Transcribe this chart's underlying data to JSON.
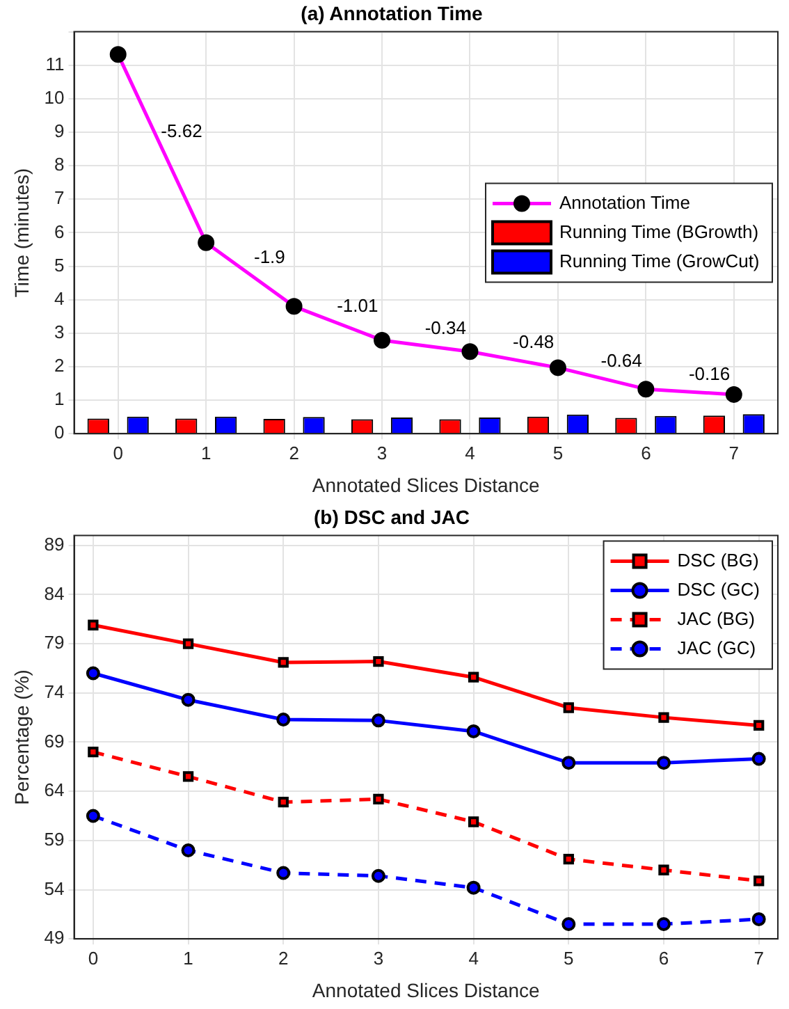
{
  "chart_data": [
    {
      "type": "bar",
      "title": "(a) Annotation Time",
      "xlabel": "Annotated Slices Distance",
      "ylabel": "Time (minutes)",
      "categories": [
        "0",
        "1",
        "2",
        "3",
        "4",
        "5",
        "6",
        "7"
      ],
      "series": [
        {
          "name": "Annotation Time",
          "type": "line",
          "color": "#ff00ff",
          "marker": "circle",
          "values": [
            11.32,
            5.7,
            3.8,
            2.79,
            2.45,
            1.97,
            1.33,
            1.17
          ]
        },
        {
          "name": "Running Time (BGrowth)",
          "type": "bar",
          "color": "#ff0000",
          "values": [
            0.45,
            0.45,
            0.44,
            0.43,
            0.43,
            0.51,
            0.47,
            0.54
          ]
        },
        {
          "name": "Running Time (GrowCut)",
          "type": "bar",
          "color": "#0000ff",
          "values": [
            0.51,
            0.51,
            0.5,
            0.48,
            0.48,
            0.57,
            0.53,
            0.58
          ]
        }
      ],
      "annotations": [
        "-5.62",
        "-1.9",
        "-1.01",
        "-0.34",
        "-0.48",
        "-0.64",
        "-0.16"
      ],
      "ylim": [
        0,
        12
      ],
      "yticks": [
        0,
        1,
        2,
        3,
        4,
        5,
        6,
        7,
        8,
        9,
        10,
        11,
        {
          "value": 12,
          "label": null
        }
      ],
      "grid": true,
      "legend": "right"
    },
    {
      "type": "line",
      "title": "(b) DSC and JAC",
      "xlabel": "Annotated Slices Distance",
      "ylabel": "Percentage (%)",
      "x": [
        0,
        1,
        2,
        3,
        4,
        5,
        6,
        7
      ],
      "series": [
        {
          "name": "DSC (BG)",
          "color": "#ff0000",
          "marker": "square",
          "line_style": "solid",
          "values": [
            80.9,
            79.0,
            77.1,
            77.2,
            75.6,
            72.5,
            71.5,
            70.7
          ]
        },
        {
          "name": "DSC (GC)",
          "color": "#0000ff",
          "marker": "circle",
          "line_style": "solid",
          "values": [
            76.0,
            73.3,
            71.3,
            71.2,
            70.1,
            66.9,
            66.9,
            67.3
          ]
        },
        {
          "name": "JAC (BG)",
          "color": "#ff0000",
          "marker": "square",
          "line_style": "dashed",
          "values": [
            68.0,
            65.5,
            62.9,
            63.2,
            60.9,
            57.1,
            56.0,
            54.9
          ]
        },
        {
          "name": "JAC (GC)",
          "color": "#0000ff",
          "marker": "circle",
          "line_style": "dashed",
          "values": [
            61.5,
            58.0,
            55.7,
            55.4,
            54.2,
            50.5,
            50.5,
            51.0
          ]
        }
      ],
      "xlim": [
        -0.2,
        7.2
      ],
      "xticks": [
        0,
        1,
        2,
        3,
        4,
        5,
        6,
        7
      ],
      "ylim": [
        49,
        90
      ],
      "yticks": [
        49,
        54,
        59,
        64,
        69,
        74,
        79,
        84,
        89
      ],
      "grid": true,
      "legend": "top right"
    }
  ]
}
